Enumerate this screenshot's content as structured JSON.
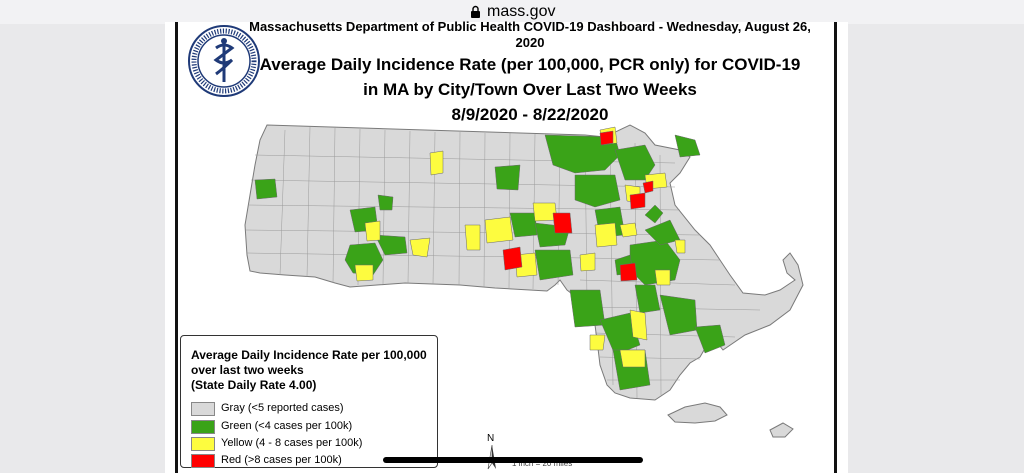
{
  "browser": {
    "url": "mass.gov"
  },
  "dashboard": {
    "header_line": "Massachusetts Department of Public Health COVID-19 Dashboard - Wednesday, August 26, 2020",
    "title_line1": "Average Daily Incidence Rate (per 100,000, PCR only) for COVID-19",
    "title_line2": "in MA by City/Town Over Last Two Weeks",
    "title_line3": "8/9/2020 - 8/22/2020"
  },
  "seal": {
    "icon": "dph-seal-icon"
  },
  "legend": {
    "title_line1": "Average Daily Incidence Rate per 100,000",
    "title_line2": "over last two weeks",
    "title_line3": "(State Daily Rate 4.00)",
    "items": [
      {
        "label": "Gray (<5 reported cases)",
        "color": "#d9d9d9"
      },
      {
        "label": "Green (<4 cases per 100k)",
        "color": "#3aa318"
      },
      {
        "label": "Yellow (4 - 8 cases per 100k)",
        "color": "#fdfc3f"
      },
      {
        "label": "Red (>8 cases per 100k)",
        "color": "#ff0000"
      }
    ]
  },
  "north_arrow": "N",
  "scale": "1 inch = 20 miles",
  "colors": {
    "gray": "#d9d9d9",
    "green": "#3aa318",
    "yellow": "#fdfc3f",
    "red": "#ff0000",
    "border": "#7a7a7a"
  }
}
